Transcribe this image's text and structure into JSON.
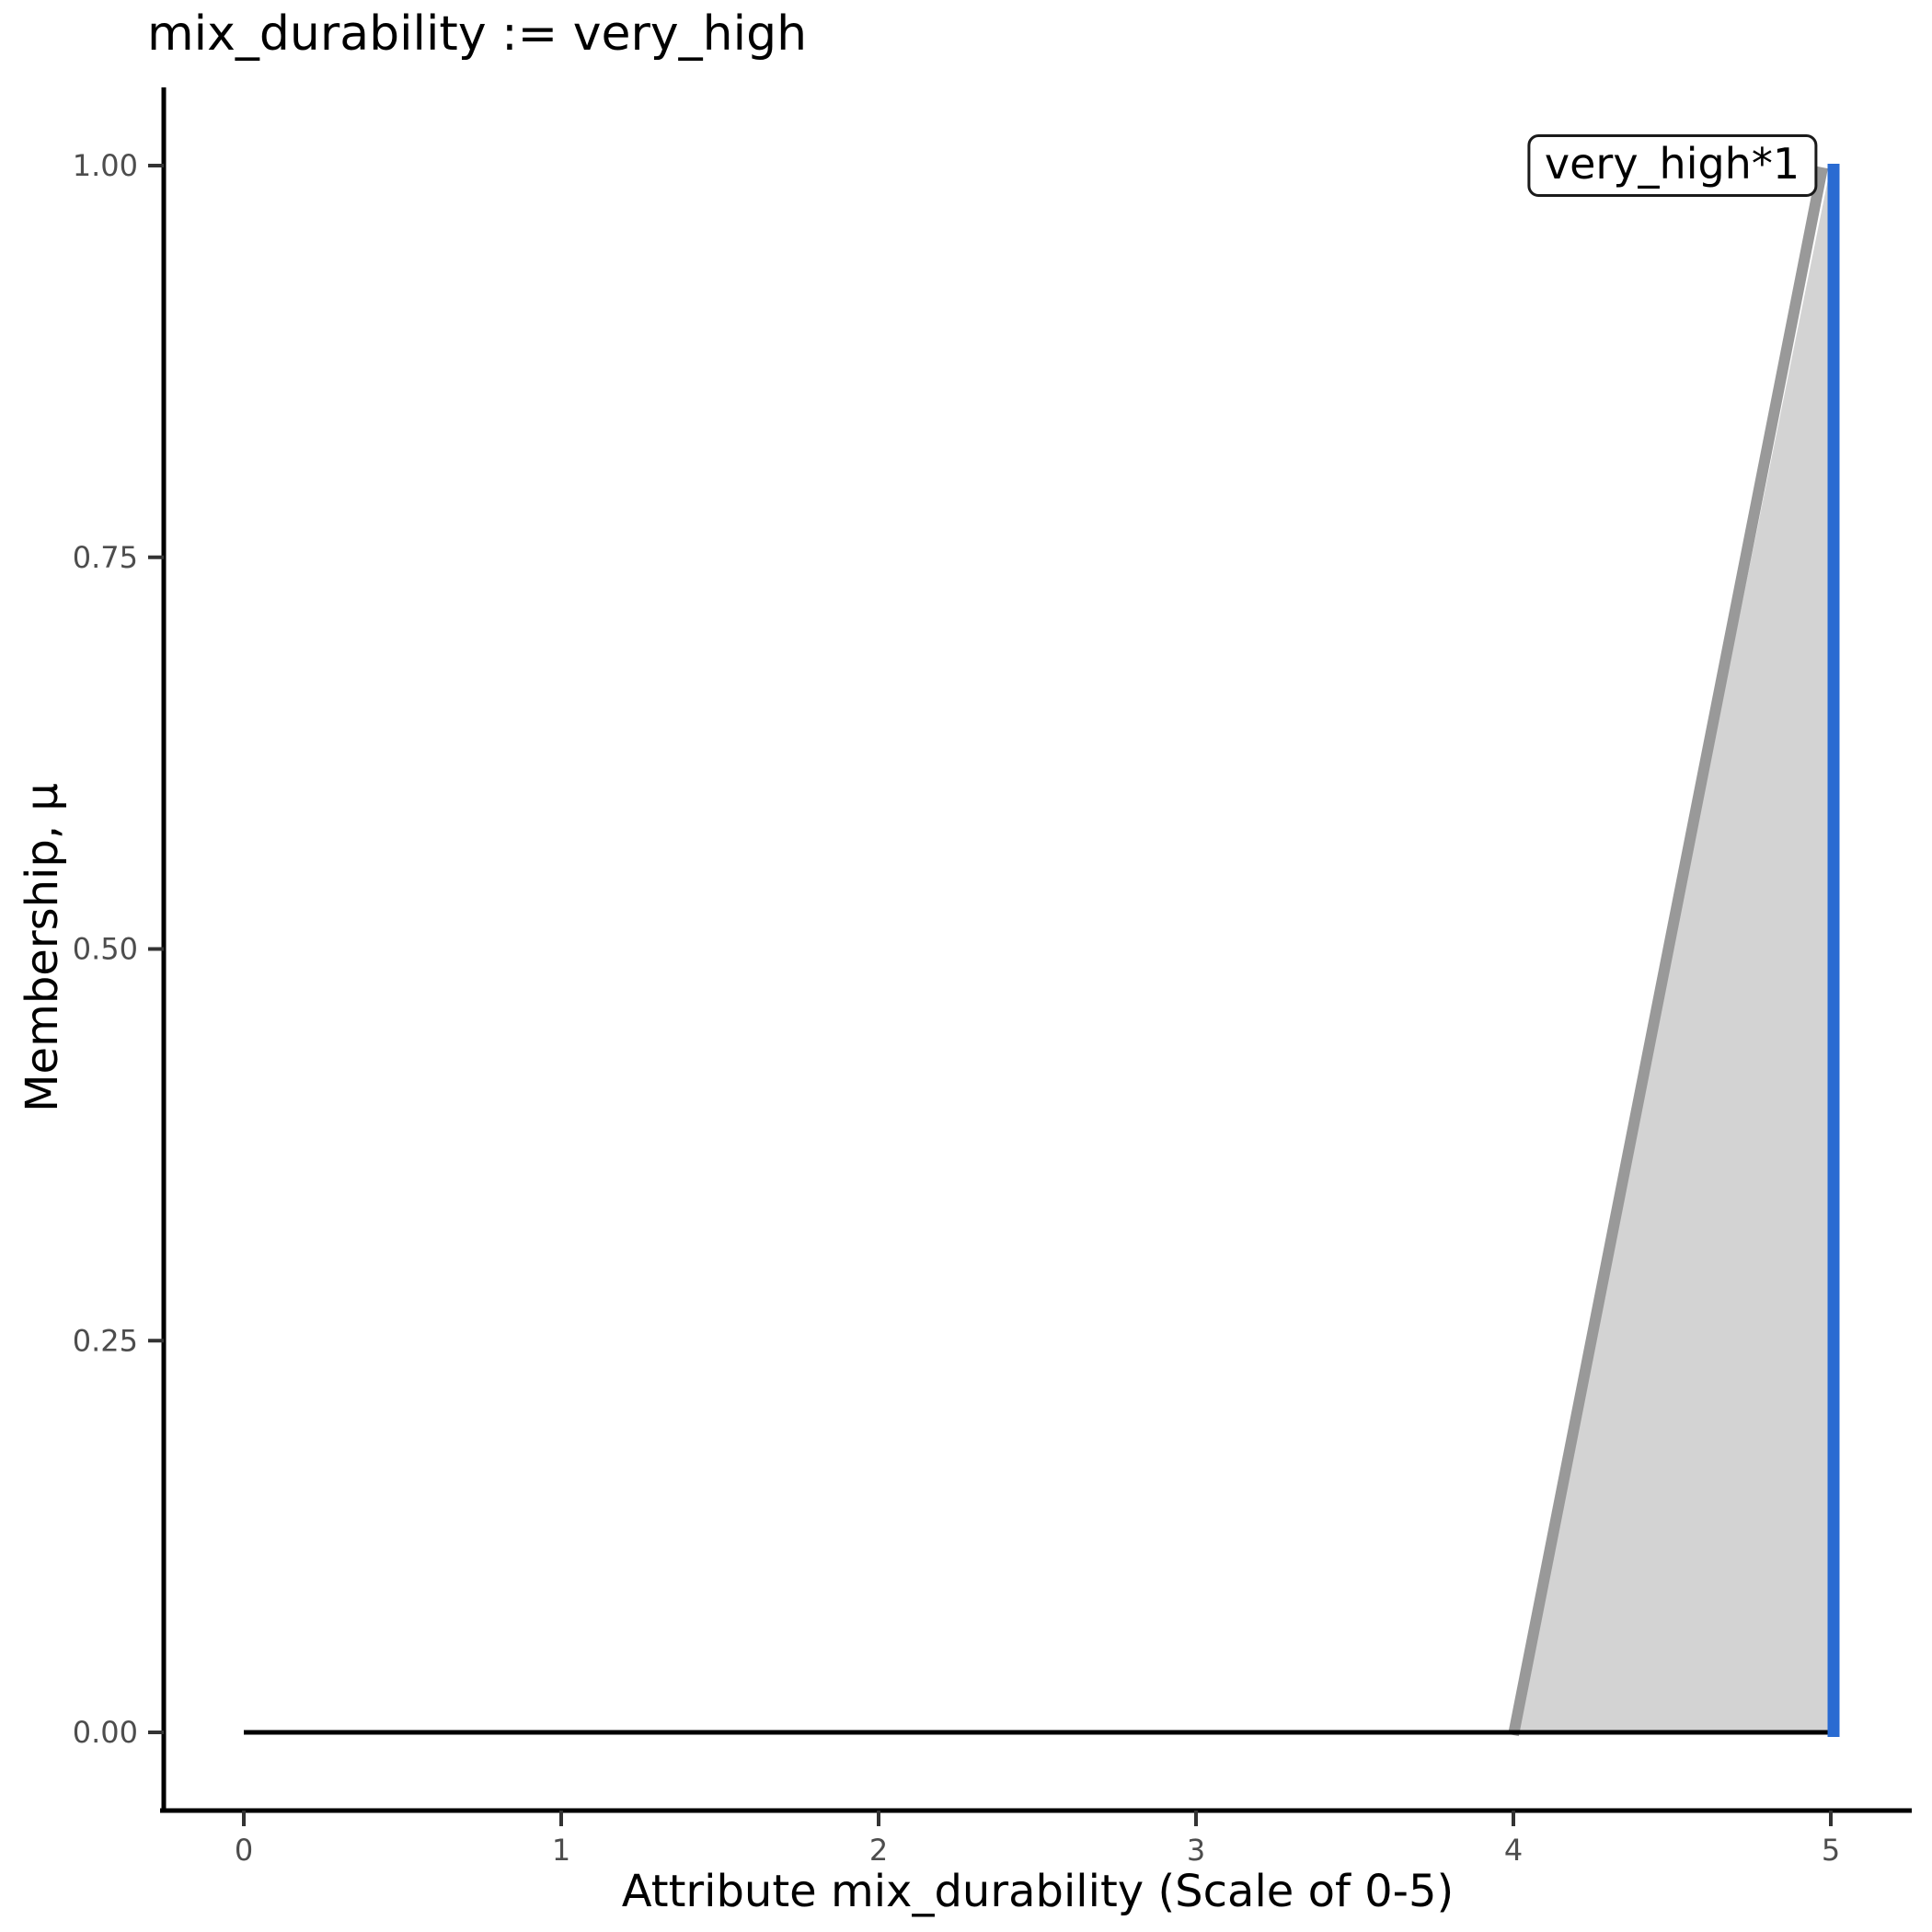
{
  "chart_data": {
    "type": "area",
    "title": "mix_durability := very_high",
    "xlabel": "Attribute mix_durability (Scale of 0-5)",
    "ylabel": "Membership, μ",
    "xlim": [
      0,
      5
    ],
    "ylim": [
      0,
      1
    ],
    "grid": false,
    "legend": "none",
    "x_ticks": {
      "values": [
        0,
        1,
        2,
        3,
        4,
        5
      ],
      "labels": [
        "0",
        "1",
        "2",
        "3",
        "4",
        "5"
      ]
    },
    "y_ticks": {
      "values": [
        0,
        0.25,
        0.5,
        0.75,
        1
      ],
      "labels": [
        "0.00",
        "0.25",
        "0.50",
        "0.75",
        "1.00"
      ]
    },
    "series": [
      {
        "name": "membership-area-very-high",
        "kind": "area",
        "fill": "#d3d3d3",
        "points": [
          [
            4,
            0
          ],
          [
            5,
            1
          ],
          [
            5,
            0
          ]
        ]
      },
      {
        "name": "membership-border-very-high",
        "kind": "line",
        "color": "#999999",
        "width": 12,
        "points": [
          [
            4,
            0
          ],
          [
            5,
            1
          ]
        ]
      },
      {
        "name": "aggregate-baseline",
        "kind": "line",
        "color": "#000000",
        "width": 5,
        "points": [
          [
            0,
            0
          ],
          [
            5,
            0
          ]
        ]
      },
      {
        "name": "activation-level-line",
        "kind": "line",
        "color": "#2a6bd2",
        "width": 13,
        "points": [
          [
            5,
            0
          ],
          [
            5,
            1
          ]
        ]
      }
    ],
    "annotation": {
      "text": "very_high*1",
      "anchor_x": 4.5,
      "anchor_y": 1.0
    }
  },
  "style_colors": {
    "axis": "#000000",
    "tick_mark": "#333333",
    "tick_label": "#4d4d4d",
    "title": "#000000"
  }
}
